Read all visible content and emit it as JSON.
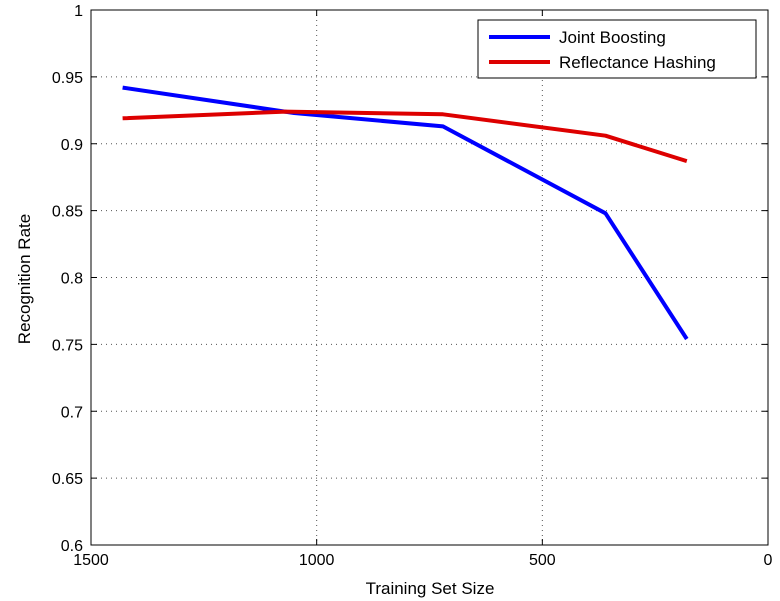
{
  "chart_data": {
    "type": "line",
    "xlabel": "Training Set Size",
    "ylabel": "Recognition Rate",
    "xlim": [
      1500,
      0
    ],
    "ylim": [
      0.6,
      1
    ],
    "x_reversed": true,
    "xticks": [
      1500,
      1000,
      500,
      0
    ],
    "yticks": [
      0.6,
      0.65,
      0.7,
      0.75,
      0.8,
      0.85,
      0.9,
      0.95,
      1
    ],
    "ytick_labels": [
      "0.6",
      "0.65",
      "0.7",
      "0.75",
      "0.8",
      "0.85",
      "0.9",
      "0.95",
      "1"
    ],
    "xtick_labels": [
      "1500",
      "1000",
      "500",
      "0"
    ],
    "grid": true,
    "legend_position": "top-right",
    "series": [
      {
        "name": "Joint Boosting",
        "color": "#0000ff",
        "x": [
          1430,
          1050,
          720,
          360,
          180
        ],
        "y": [
          0.942,
          0.923,
          0.913,
          0.848,
          0.754
        ]
      },
      {
        "name": "Reflectance Hashing",
        "color": "#dd0000",
        "x": [
          1430,
          1070,
          720,
          360,
          180
        ],
        "y": [
          0.919,
          0.924,
          0.922,
          0.906,
          0.887
        ]
      }
    ]
  }
}
